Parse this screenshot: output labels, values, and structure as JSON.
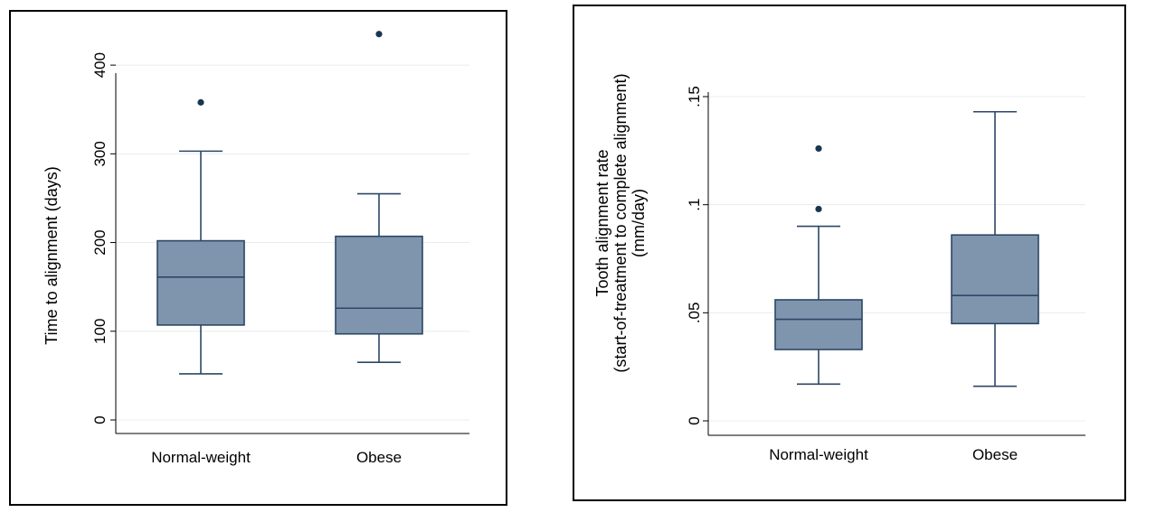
{
  "chart_data": [
    {
      "type": "box",
      "ylabel_lines": [
        "Time to alignment (days)"
      ],
      "ylim": [
        0,
        450
      ],
      "yticks": [
        0,
        100,
        200,
        300,
        400
      ],
      "ytick_labels": [
        "0",
        "100",
        "200",
        "300",
        "400"
      ],
      "grid": true,
      "categories": [
        "Normal-weight",
        "Obese"
      ],
      "boxes": [
        {
          "category": "Normal-weight",
          "whisker_low": 52,
          "q1": 107,
          "median": 161,
          "q3": 202,
          "whisker_high": 303,
          "outliers": [
            358
          ]
        },
        {
          "category": "Obese",
          "whisker_low": 65,
          "q1": 97,
          "median": 126,
          "q3": 207,
          "whisker_high": 255,
          "outliers": [
            435
          ]
        }
      ]
    },
    {
      "type": "box",
      "ylabel_lines": [
        "Tooth alignment rate",
        "(start-of-treatment to complete alignment)",
        "(mm/day)"
      ],
      "ylim": [
        0,
        0.15
      ],
      "yticks": [
        0,
        0.05,
        0.1,
        0.15
      ],
      "ytick_labels": [
        "0",
        ".05",
        ".1",
        ".15"
      ],
      "grid": true,
      "categories": [
        "Normal-weight",
        "Obese"
      ],
      "boxes": [
        {
          "category": "Normal-weight",
          "whisker_low": 0.017,
          "q1": 0.033,
          "median": 0.047,
          "q3": 0.056,
          "whisker_high": 0.09,
          "outliers": [
            0.098,
            0.126
          ]
        },
        {
          "category": "Obese",
          "whisker_low": 0.016,
          "q1": 0.045,
          "median": 0.058,
          "q3": 0.086,
          "whisker_high": 0.143,
          "outliers": []
        }
      ]
    }
  ]
}
